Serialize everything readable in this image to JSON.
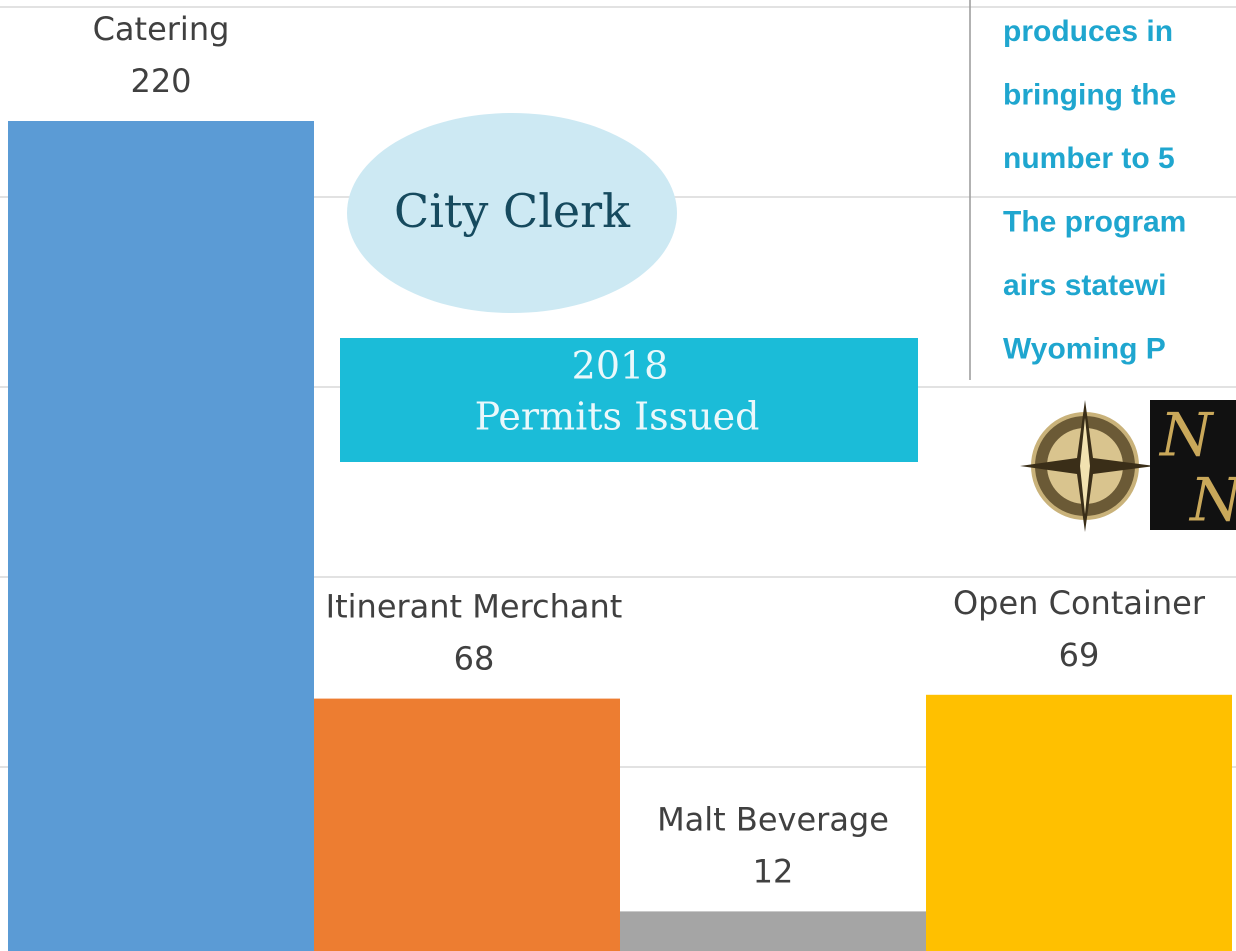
{
  "chart_data": {
    "type": "bar",
    "categories": [
      "Catering",
      "Itinerant Merchant",
      "Malt Beverage",
      "Open Container"
    ],
    "values": [
      220,
      68,
      12,
      69
    ],
    "colors": [
      "#5b9bd5",
      "#ed7d31",
      "#a5a5a5",
      "#ffc000"
    ],
    "ylim": [
      0,
      250
    ],
    "yticks": [
      0,
      50,
      100,
      150,
      200,
      250
    ],
    "grid": true
  },
  "bubble": {
    "label": "City Clerk"
  },
  "banner": {
    "year": "2018",
    "label": "Permits Issued"
  },
  "side_text": {
    "lines": [
      "produces in",
      "bringing the",
      "number to 5",
      "The program",
      "airs statewi",
      "Wyoming P"
    ]
  }
}
